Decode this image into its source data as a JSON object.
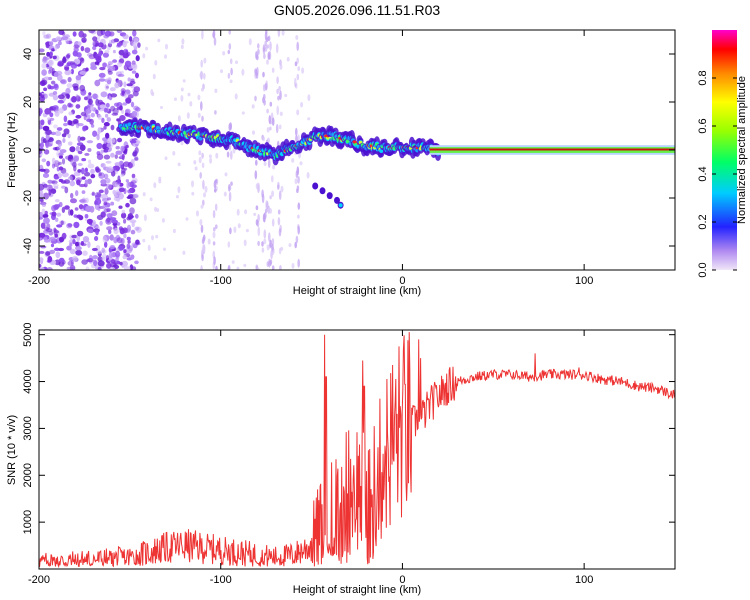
{
  "title": "GN05.2026.096.11.51.R03",
  "colors": {
    "snr_line": "#ee3333",
    "track_line": "#cc1111",
    "noise": "#7b2ee0"
  },
  "chart_data": [
    {
      "type": "heatmap",
      "title": "GN05.2026.096.11.51.R03",
      "xlabel": "Height of straight line (km)",
      "ylabel": "Frequency (Hz)",
      "xlim": [
        -200,
        150
      ],
      "ylim": [
        -50,
        50
      ],
      "xticks": [
        -200,
        -100,
        0,
        100
      ],
      "xtick_labels": [
        "-200",
        "-100",
        "0",
        "100"
      ],
      "yticks": [
        -40,
        -20,
        0,
        20,
        40
      ],
      "ytick_labels": [
        "-40",
        "-20",
        "0",
        "20",
        "40"
      ],
      "colorbar": {
        "label": "Normalized spectral amplitude",
        "range": [
          0,
          1
        ],
        "ticks": [
          0.0,
          0.2,
          0.4,
          0.6,
          0.8
        ],
        "tick_labels": [
          "0.0",
          "0.2",
          "0.4",
          "0.6",
          "0.8"
        ]
      },
      "ridge": {
        "x": [
          -155,
          -140,
          -120,
          -100,
          -90,
          -80,
          -70,
          -60,
          -50,
          -40,
          -30,
          -20,
          -10,
          0,
          10,
          20,
          150
        ],
        "y": [
          10,
          9,
          7,
          5,
          3,
          0,
          -2,
          1,
          5,
          6,
          4,
          2,
          1,
          1,
          1,
          0,
          0
        ]
      },
      "branch": {
        "x": [
          -48,
          -44,
          -40,
          -36,
          -34
        ],
        "y": [
          -15,
          -17,
          -19,
          -21,
          -23
        ]
      }
    },
    {
      "type": "line",
      "xlabel": "Height of straight line (km)",
      "ylabel": "SNR (10 * v/v)",
      "xlim": [
        -200,
        150
      ],
      "ylim": [
        0,
        5100
      ],
      "xticks": [
        -200,
        -100,
        0,
        100
      ],
      "xtick_labels": [
        "-200",
        "-100",
        "0",
        "100"
      ],
      "yticks": [
        1000,
        2000,
        3000,
        4000,
        5000
      ],
      "ytick_labels": [
        "1000",
        "2000",
        "3000",
        "4000",
        "5000"
      ],
      "series": [
        {
          "name": "SNR",
          "x": [
            -200,
            -170,
            -150,
            -140,
            -130,
            -120,
            -110,
            -100,
            -90,
            -80,
            -70,
            -60,
            -50,
            -45,
            -40,
            -35,
            -30,
            -25,
            -20,
            -15,
            -10,
            -5,
            0,
            5,
            10,
            15,
            20,
            25,
            30,
            40,
            50,
            60,
            70,
            80,
            90,
            100,
            110,
            120,
            130,
            140,
            150
          ],
          "y": [
            150,
            200,
            250,
            350,
            450,
            500,
            450,
            400,
            350,
            300,
            250,
            300,
            500,
            900,
            1200,
            1400,
            1700,
            1800,
            1500,
            1700,
            2400,
            2800,
            3000,
            3100,
            3200,
            3500,
            3700,
            3900,
            4000,
            4100,
            4150,
            4150,
            4100,
            4150,
            4150,
            4150,
            4050,
            4000,
            3900,
            3850,
            3700
          ]
        }
      ],
      "spikes": {
        "x": [
          -43,
          -42,
          -22,
          -21,
          9,
          10,
          73,
          97
        ],
        "y": [
          5000,
          4100,
          4450,
          3900,
          4900,
          4500,
          4600,
          4300
        ]
      }
    }
  ]
}
